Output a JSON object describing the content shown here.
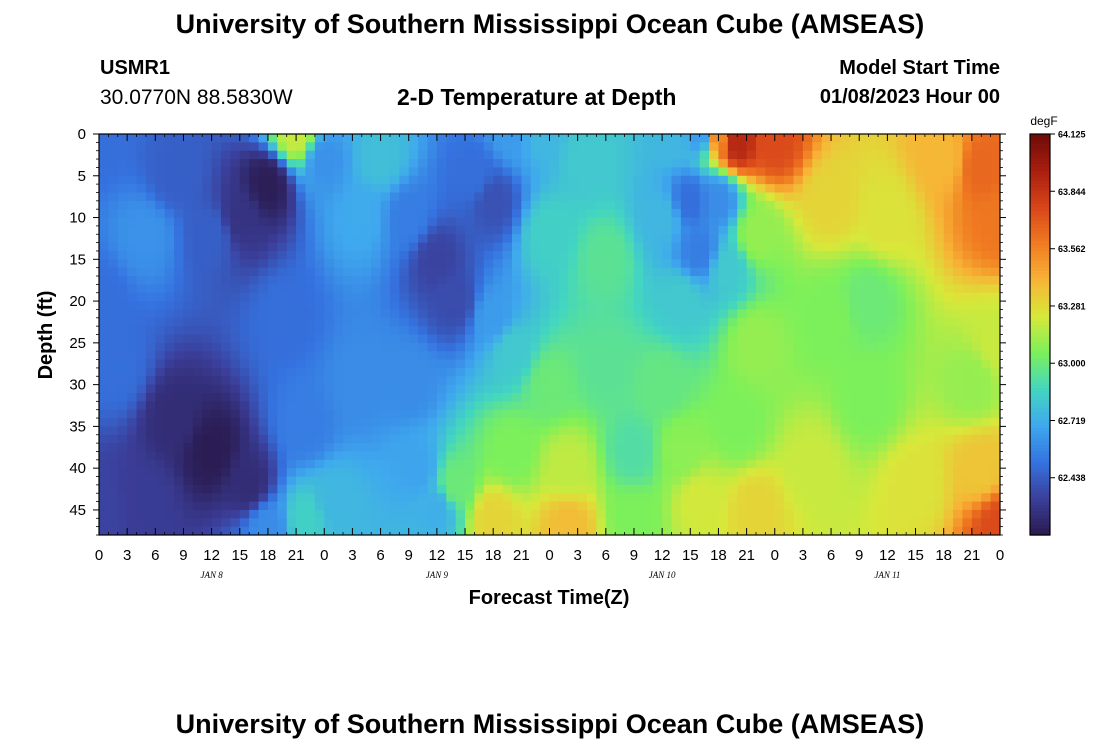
{
  "page": {
    "title": "University of Southern Mississippi Ocean Cube (AMSEAS)",
    "footer_title": "University of Southern Mississippi Ocean Cube (AMSEAS)"
  },
  "header": {
    "station": "USMR1",
    "coordinates": "30.0770N  88.5830W",
    "plot_title": "2-D Temperature at Depth",
    "model_start_label": "Model Start Time",
    "model_start_value": "01/08/2023 Hour 00"
  },
  "chart_data": {
    "type": "heatmap",
    "xlabel": "Forecast Time(Z)",
    "ylabel": "Depth (ft)",
    "x_range_hours": [
      0,
      96
    ],
    "x_ticks": [
      {
        "hour": 0,
        "label": "0"
      },
      {
        "hour": 3,
        "label": "3"
      },
      {
        "hour": 6,
        "label": "6"
      },
      {
        "hour": 9,
        "label": "9"
      },
      {
        "hour": 12,
        "label": "12"
      },
      {
        "hour": 15,
        "label": "15"
      },
      {
        "hour": 18,
        "label": "18"
      },
      {
        "hour": 21,
        "label": "21"
      },
      {
        "hour": 24,
        "label": "0"
      },
      {
        "hour": 27,
        "label": "3"
      },
      {
        "hour": 30,
        "label": "6"
      },
      {
        "hour": 33,
        "label": "9"
      },
      {
        "hour": 36,
        "label": "12"
      },
      {
        "hour": 39,
        "label": "15"
      },
      {
        "hour": 42,
        "label": "18"
      },
      {
        "hour": 45,
        "label": "21"
      },
      {
        "hour": 48,
        "label": "0"
      },
      {
        "hour": 51,
        "label": "3"
      },
      {
        "hour": 54,
        "label": "6"
      },
      {
        "hour": 57,
        "label": "9"
      },
      {
        "hour": 60,
        "label": "12"
      },
      {
        "hour": 63,
        "label": "15"
      },
      {
        "hour": 66,
        "label": "18"
      },
      {
        "hour": 69,
        "label": "21"
      },
      {
        "hour": 72,
        "label": "0"
      },
      {
        "hour": 75,
        "label": "3"
      },
      {
        "hour": 78,
        "label": "6"
      },
      {
        "hour": 81,
        "label": "9"
      },
      {
        "hour": 84,
        "label": "12"
      },
      {
        "hour": 87,
        "label": "15"
      },
      {
        "hour": 90,
        "label": "18"
      },
      {
        "hour": 93,
        "label": "21"
      },
      {
        "hour": 96,
        "label": "0"
      }
    ],
    "day_labels": [
      {
        "hour": 12,
        "label": "JAN 8"
      },
      {
        "hour": 36,
        "label": "JAN 9"
      },
      {
        "hour": 60,
        "label": "JAN 10"
      },
      {
        "hour": 84,
        "label": "JAN 11"
      }
    ],
    "y_range_ft": [
      0,
      48
    ],
    "y_reversed": true,
    "y_ticks": [
      0,
      5,
      10,
      15,
      20,
      25,
      30,
      35,
      40,
      45
    ],
    "colorbar": {
      "unit": "degF",
      "min": 62.157,
      "max": 64.125,
      "tick_labels": [
        "64.125",
        "63.844",
        "63.562",
        "63.281",
        "63.000",
        "62.719",
        "62.438"
      ],
      "colors": [
        "#2a1a4e",
        "#3b3f9b",
        "#3573e0",
        "#3fa8ee",
        "#43d6c0",
        "#7cf05a",
        "#d8e83a",
        "#f7b436",
        "#f07a21",
        "#d8451a",
        "#a81e10",
        "#6e0c08"
      ]
    },
    "field_features": [
      {
        "hour": 0,
        "depth": 0,
        "value": 62.5
      },
      {
        "hour": 0,
        "depth": 20,
        "value": 62.5
      },
      {
        "hour": 0,
        "depth": 45,
        "value": 62.35
      },
      {
        "hour": 5,
        "depth": 12,
        "value": 62.62
      },
      {
        "hour": 2,
        "depth": 28,
        "value": 62.5
      },
      {
        "hour": 8,
        "depth": 5,
        "value": 62.45
      },
      {
        "hour": 12,
        "depth": 12,
        "value": 62.45
      },
      {
        "hour": 18,
        "depth": 6,
        "value": 62.18
      },
      {
        "hour": 15,
        "depth": 10,
        "value": 62.28
      },
      {
        "hour": 21,
        "depth": 0,
        "value": 63.2
      },
      {
        "hour": 24,
        "depth": 3,
        "value": 62.62
      },
      {
        "hour": 20,
        "depth": 22,
        "value": 62.5
      },
      {
        "hour": 12,
        "depth": 38,
        "value": 62.17
      },
      {
        "hour": 8,
        "depth": 34,
        "value": 62.25
      },
      {
        "hour": 16,
        "depth": 42,
        "value": 62.25
      },
      {
        "hour": 5,
        "depth": 44,
        "value": 62.32
      },
      {
        "hour": 18,
        "depth": 47,
        "value": 62.6
      },
      {
        "hour": 22,
        "depth": 46,
        "value": 62.85
      },
      {
        "hour": 25,
        "depth": 44,
        "value": 62.75
      },
      {
        "hour": 22,
        "depth": 35,
        "value": 62.55
      },
      {
        "hour": 28,
        "depth": 10,
        "value": 62.7
      },
      {
        "hour": 28,
        "depth": 30,
        "value": 62.6
      },
      {
        "hour": 30,
        "depth": 3,
        "value": 62.78
      },
      {
        "hour": 33,
        "depth": 10,
        "value": 62.55
      },
      {
        "hour": 36,
        "depth": 15,
        "value": 62.35
      },
      {
        "hour": 38,
        "depth": 20,
        "value": 62.38
      },
      {
        "hour": 33,
        "depth": 30,
        "value": 62.6
      },
      {
        "hour": 34,
        "depth": 40,
        "value": 62.68
      },
      {
        "hour": 36,
        "depth": 45,
        "value": 62.72
      },
      {
        "hour": 38,
        "depth": 42,
        "value": 63.0
      },
      {
        "hour": 40,
        "depth": 5,
        "value": 62.5
      },
      {
        "hour": 42,
        "depth": 8,
        "value": 62.4
      },
      {
        "hour": 44,
        "depth": 0,
        "value": 62.65
      },
      {
        "hour": 42,
        "depth": 22,
        "value": 62.65
      },
      {
        "hour": 44,
        "depth": 26,
        "value": 62.82
      },
      {
        "hour": 44,
        "depth": 38,
        "value": 63.05
      },
      {
        "hour": 42,
        "depth": 46,
        "value": 63.3
      },
      {
        "hour": 48,
        "depth": 12,
        "value": 62.85
      },
      {
        "hour": 47,
        "depth": 0,
        "value": 62.75
      },
      {
        "hour": 48,
        "depth": 30,
        "value": 63.0
      },
      {
        "hour": 50,
        "depth": 40,
        "value": 63.18
      },
      {
        "hour": 50,
        "depth": 47,
        "value": 63.38
      },
      {
        "hour": 52,
        "depth": 3,
        "value": 62.82
      },
      {
        "hour": 54,
        "depth": 15,
        "value": 62.95
      },
      {
        "hour": 54,
        "depth": 28,
        "value": 62.95
      },
      {
        "hour": 57,
        "depth": 38,
        "value": 62.92
      },
      {
        "hour": 57,
        "depth": 46,
        "value": 63.05
      },
      {
        "hour": 60,
        "depth": 30,
        "value": 62.98
      },
      {
        "hour": 60,
        "depth": 10,
        "value": 62.75
      },
      {
        "hour": 63,
        "depth": 8,
        "value": 62.5
      },
      {
        "hour": 64,
        "depth": 14,
        "value": 62.55
      },
      {
        "hour": 62,
        "depth": 20,
        "value": 62.82
      },
      {
        "hour": 64,
        "depth": 0,
        "value": 62.65
      },
      {
        "hour": 61,
        "depth": 0,
        "value": 62.75
      },
      {
        "hour": 66,
        "depth": 8,
        "value": 62.6
      },
      {
        "hour": 67,
        "depth": 16,
        "value": 62.82
      },
      {
        "hour": 64,
        "depth": 44,
        "value": 63.22
      },
      {
        "hour": 62,
        "depth": 38,
        "value": 63.08
      },
      {
        "hour": 66,
        "depth": 0,
        "value": 63.55
      },
      {
        "hour": 68,
        "depth": 1,
        "value": 63.9
      },
      {
        "hour": 72,
        "depth": 1,
        "value": 63.75
      },
      {
        "hour": 70,
        "depth": 12,
        "value": 63.1
      },
      {
        "hour": 70,
        "depth": 25,
        "value": 63.1
      },
      {
        "hour": 68,
        "depth": 35,
        "value": 63.05
      },
      {
        "hour": 70,
        "depth": 45,
        "value": 63.3
      },
      {
        "hour": 76,
        "depth": 40,
        "value": 63.2
      },
      {
        "hour": 78,
        "depth": 8,
        "value": 63.3
      },
      {
        "hour": 78,
        "depth": 22,
        "value": 63.05
      },
      {
        "hour": 82,
        "depth": 32,
        "value": 63.05
      },
      {
        "hour": 84,
        "depth": 10,
        "value": 63.25
      },
      {
        "hour": 82,
        "depth": 20,
        "value": 63.0
      },
      {
        "hour": 87,
        "depth": 42,
        "value": 63.25
      },
      {
        "hour": 90,
        "depth": 3,
        "value": 63.4
      },
      {
        "hour": 94,
        "depth": 4,
        "value": 63.65
      },
      {
        "hour": 96,
        "depth": 10,
        "value": 63.6
      },
      {
        "hour": 96,
        "depth": 25,
        "value": 63.2
      },
      {
        "hour": 93,
        "depth": 30,
        "value": 63.1
      },
      {
        "hour": 94,
        "depth": 40,
        "value": 63.35
      },
      {
        "hour": 96,
        "depth": 47,
        "value": 63.75
      }
    ]
  }
}
